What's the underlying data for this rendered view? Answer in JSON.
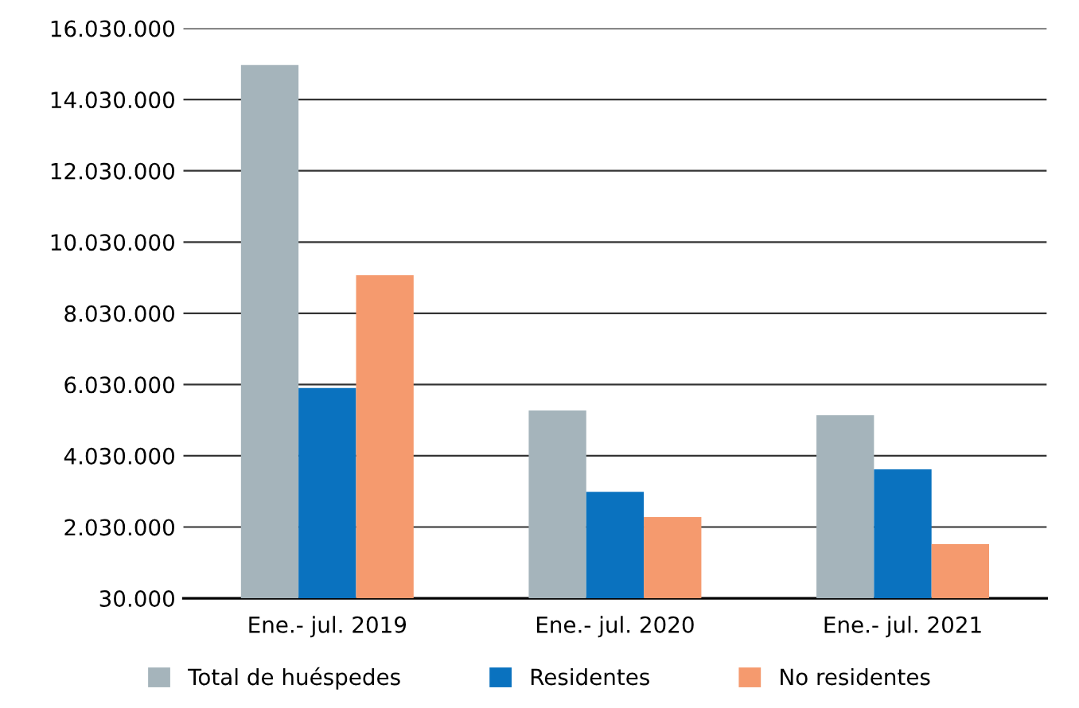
{
  "chart_data": {
    "type": "bar",
    "categories": [
      "Ene.- jul. 2019",
      "Ene.- jul. 2020",
      "Ene.- jul. 2021"
    ],
    "series": [
      {
        "name": "Total de huéspedes",
        "color": "#a5b4bb",
        "values": [
          15000000,
          5300000,
          5170000
        ]
      },
      {
        "name": "Residentes",
        "color": "#0a72bf",
        "values": [
          5930000,
          3020000,
          3650000
        ]
      },
      {
        "name": "No residentes",
        "color": "#f59a6e",
        "values": [
          9100000,
          2310000,
          1550000
        ]
      }
    ],
    "ylim": [
      30000,
      16030000
    ],
    "yticks": [
      {
        "value": 30000,
        "label": "30.000"
      },
      {
        "value": 2030000,
        "label": "2.030.000"
      },
      {
        "value": 4030000,
        "label": "4.030.000"
      },
      {
        "value": 6030000,
        "label": "6.030.000"
      },
      {
        "value": 8030000,
        "label": "8.030.000"
      },
      {
        "value": 10030000,
        "label": "10.030.000"
      },
      {
        "value": 12030000,
        "label": "12.030.000"
      },
      {
        "value": 14030000,
        "label": "14.030.000"
      },
      {
        "value": 16030000,
        "label": "16.030.000"
      }
    ],
    "grid": "y",
    "legend": "bottom"
  }
}
